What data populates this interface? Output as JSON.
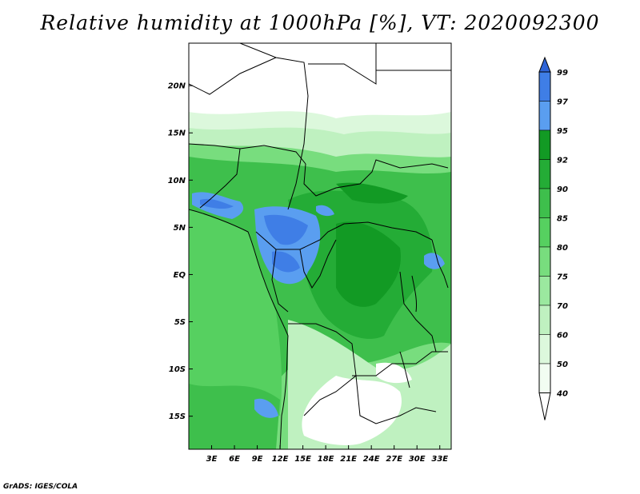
{
  "title": "Relative humidity at 1000hPa [%], VT: 2020092300",
  "footer": "GrADS: IGES/COLA",
  "map": {
    "lat_ticks": [
      "20N",
      "15N",
      "10N",
      "5N",
      "EQ",
      "5S",
      "10S",
      "15S"
    ],
    "lon_ticks": [
      "3E",
      "6E",
      "9E",
      "12E",
      "15E",
      "18E",
      "21E",
      "24E",
      "27E",
      "30E",
      "33E"
    ],
    "lat_range": [
      -18.5,
      24.5
    ],
    "lon_range": [
      0,
      34.5
    ]
  },
  "colorbar": {
    "labels": [
      "99",
      "97",
      "95",
      "92",
      "90",
      "85",
      "80",
      "75",
      "70",
      "60",
      "50",
      "40"
    ],
    "colors": [
      "#2f64d6",
      "#3f7ee6",
      "#5a9ef0",
      "#129a24",
      "#24ac36",
      "#3ebf4c",
      "#56d060",
      "#78dd7e",
      "#9be89f",
      "#bff1c0",
      "#dcf8dc",
      "#f2fdf2",
      "#ffffff"
    ]
  }
}
